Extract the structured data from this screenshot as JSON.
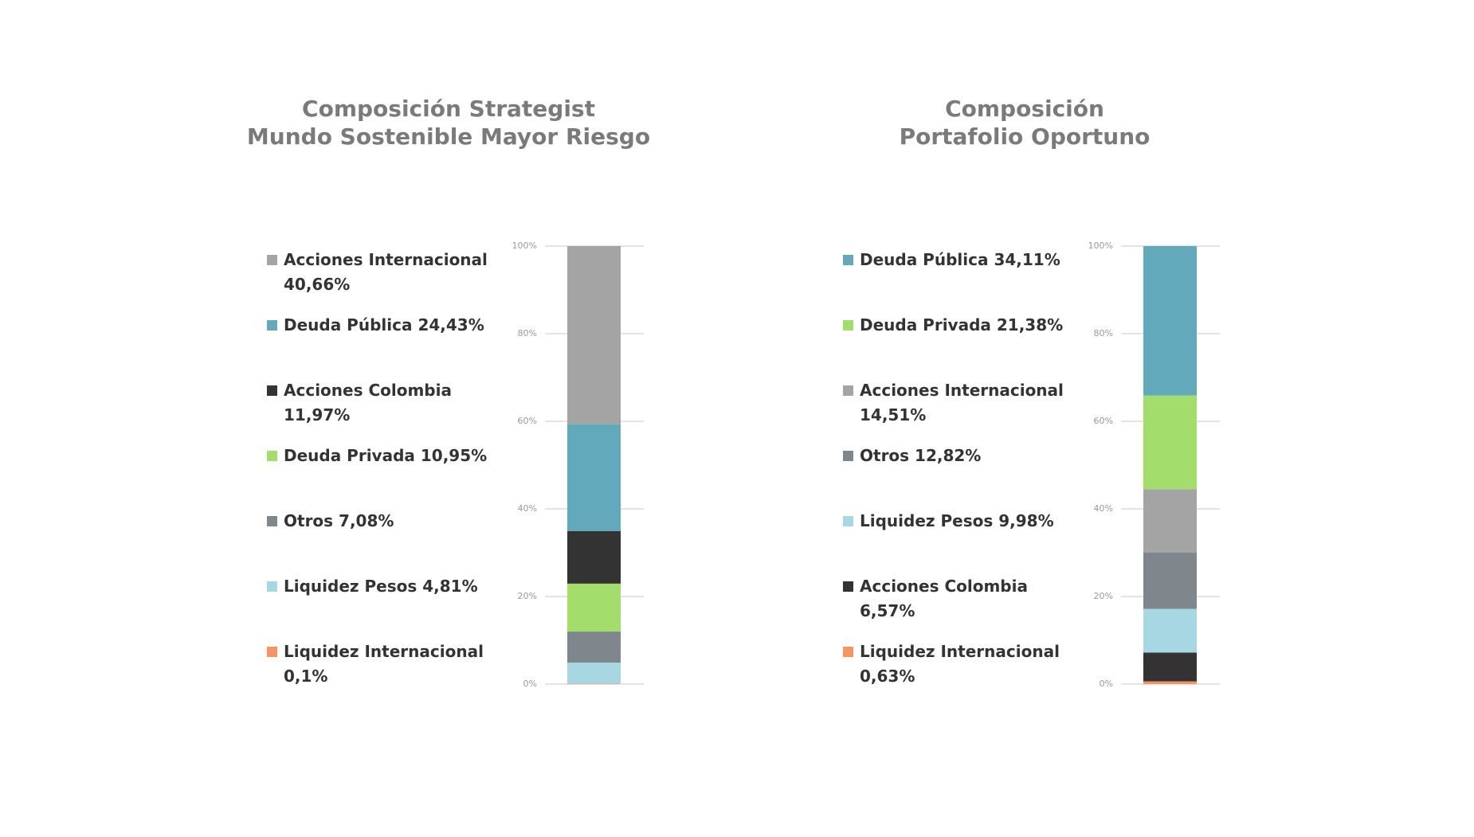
{
  "chart_data": [
    {
      "type": "stacked_bar",
      "title": [
        "Composición Strategist",
        "Mundo Sostenible Mayor Riesgo"
      ],
      "ylim": [
        0,
        100
      ],
      "yticks": [
        {
          "value": 0,
          "label": "0%"
        },
        {
          "value": 20,
          "label": "20%"
        },
        {
          "value": 40,
          "label": "40%"
        },
        {
          "value": 60,
          "label": "60%"
        },
        {
          "value": 80,
          "label": "80%"
        },
        {
          "value": 100,
          "label": "100%"
        }
      ],
      "grid": true,
      "series": [
        {
          "name": "Acciones Internacional",
          "color": "#a5a4a5",
          "values": [
            40.66
          ],
          "value_labels": [
            "40,66%"
          ]
        },
        {
          "name": "Deuda Pública",
          "color": "#62a9bc",
          "values": [
            24.43
          ],
          "value_labels": [
            "24,43%"
          ]
        },
        {
          "name": "Acciones Colombia",
          "color": "#333333",
          "values": [
            11.97
          ],
          "value_labels": [
            "11,97%"
          ]
        },
        {
          "name": "Deuda Privada",
          "color": "#a3de6c",
          "values": [
            10.95
          ],
          "value_labels": [
            "10,95%"
          ]
        },
        {
          "name": "Otros",
          "color": "#7f868c",
          "values": [
            7.08
          ],
          "value_labels": [
            "7,08%"
          ]
        },
        {
          "name": "Liquidez Pesos",
          "color": "#a6d7e2",
          "values": [
            4.81
          ],
          "value_labels": [
            "4,81%"
          ]
        },
        {
          "name": "Liquidez Internacional",
          "color": "#f79460",
          "values": [
            0.1
          ],
          "value_labels": [
            "0,1%"
          ]
        }
      ]
    },
    {
      "type": "stacked_bar",
      "title": [
        "Composición",
        "Portafolio Oportuno"
      ],
      "ylim": [
        0,
        100
      ],
      "yticks": [
        {
          "value": 0,
          "label": "0%"
        },
        {
          "value": 20,
          "label": "20%"
        },
        {
          "value": 40,
          "label": "40%"
        },
        {
          "value": 60,
          "label": "60%"
        },
        {
          "value": 80,
          "label": "80%"
        },
        {
          "value": 100,
          "label": "100%"
        }
      ],
      "grid": true,
      "series": [
        {
          "name": "Deuda Pública",
          "color": "#62a9bc",
          "values": [
            34.11
          ],
          "value_labels": [
            "34,11%"
          ]
        },
        {
          "name": "Deuda Privada",
          "color": "#a3de6c",
          "values": [
            21.38
          ],
          "value_labels": [
            "21,38%"
          ]
        },
        {
          "name": "Acciones Internacional",
          "color": "#a5a4a5",
          "values": [
            14.51
          ],
          "value_labels": [
            "14,51%"
          ]
        },
        {
          "name": "Otros",
          "color": "#7f868c",
          "values": [
            12.82
          ],
          "value_labels": [
            "12,82%"
          ]
        },
        {
          "name": "Liquidez Pesos",
          "color": "#a6d7e2",
          "values": [
            9.98
          ],
          "value_labels": [
            "9,98%"
          ]
        },
        {
          "name": "Acciones Colombia",
          "color": "#333333",
          "values": [
            6.57
          ],
          "value_labels": [
            "6,57%"
          ]
        },
        {
          "name": "Liquidez Internacional",
          "color": "#f79460",
          "values": [
            0.63
          ],
          "value_labels": [
            "0,63%"
          ]
        }
      ]
    }
  ]
}
